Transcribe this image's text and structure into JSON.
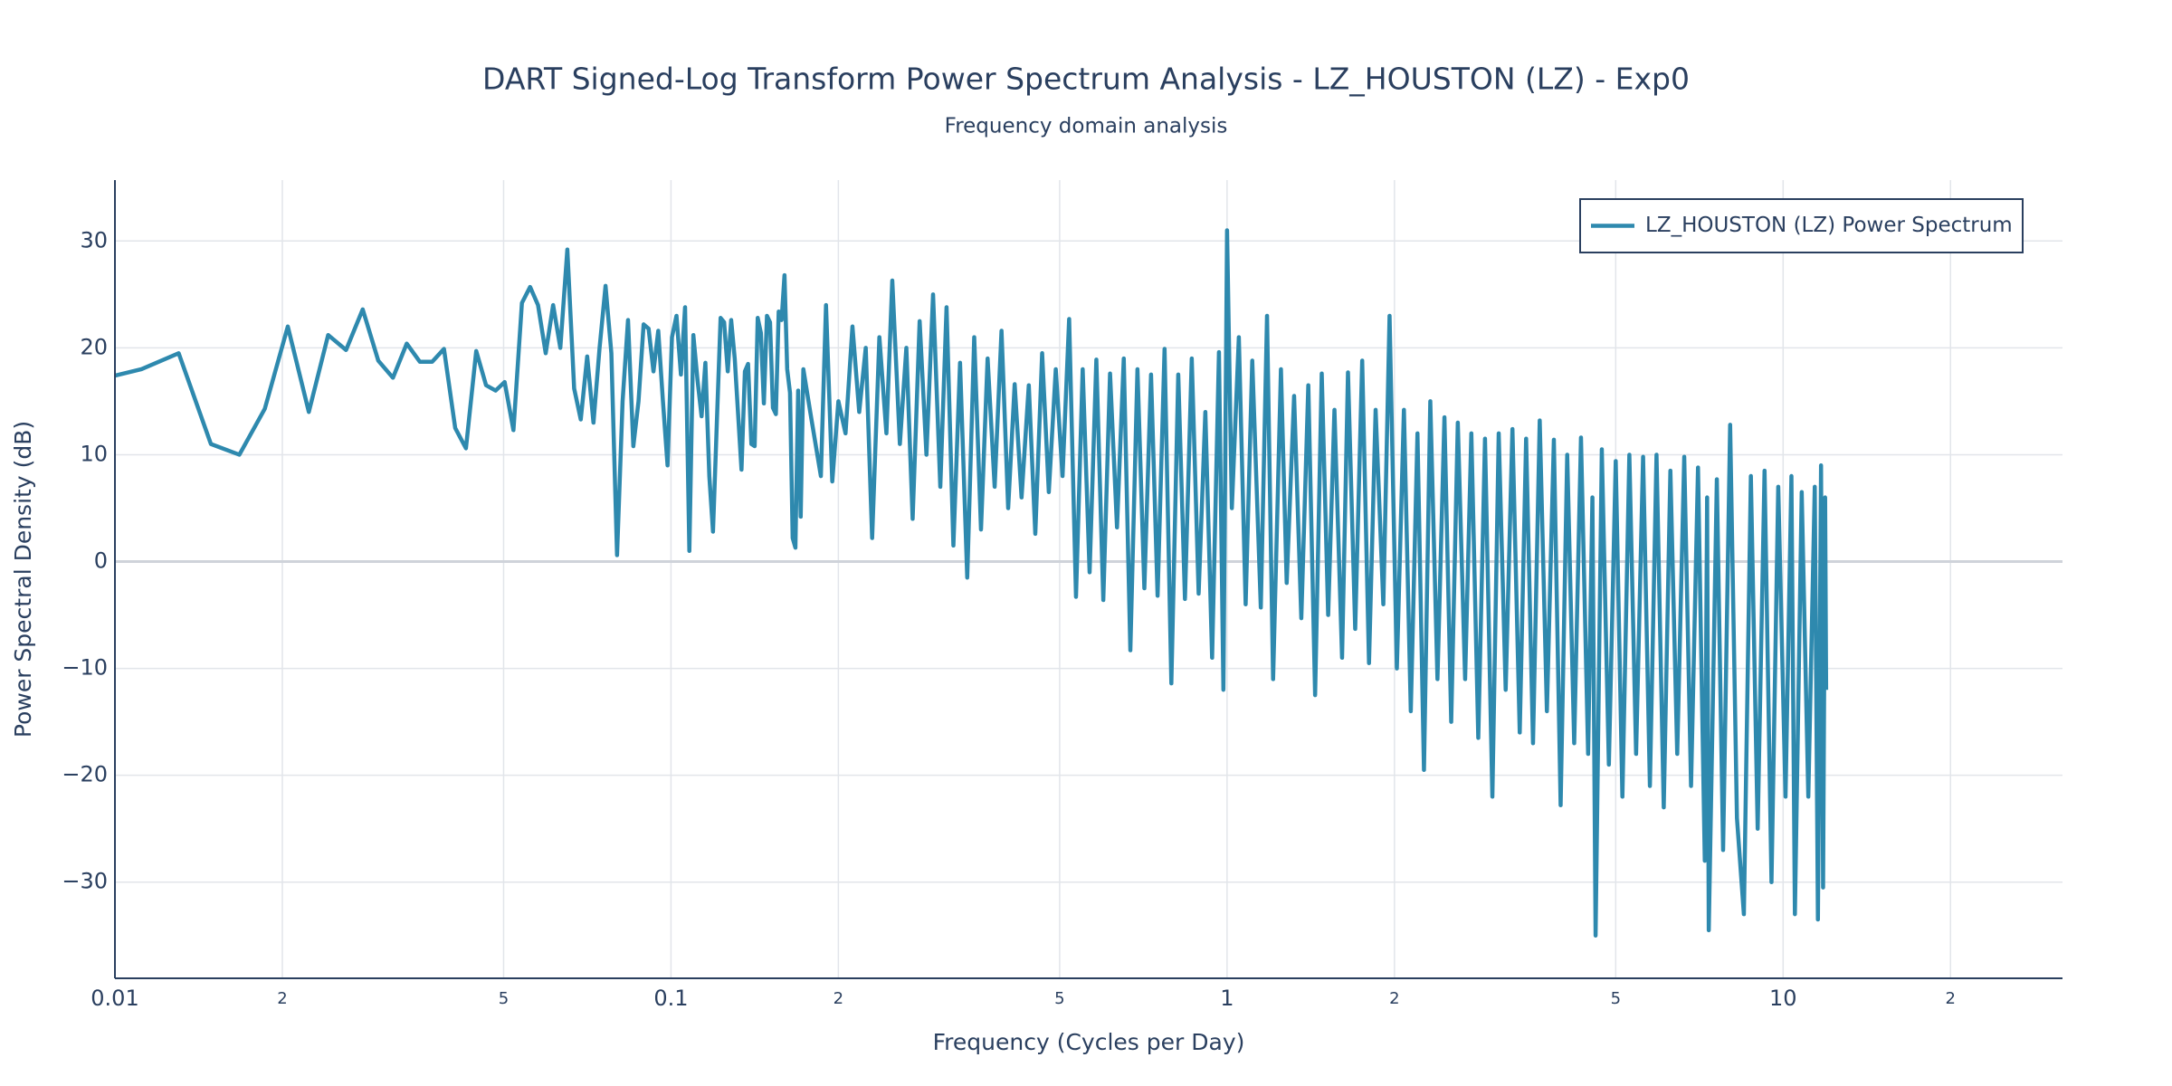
{
  "chart_data": {
    "type": "line",
    "title": "DART Signed-Log Transform Power Spectrum Analysis - LZ_HOUSTON (LZ) - Exp0",
    "subtitle": "Frequency domain analysis",
    "x_label": "Frequency (Cycles per Day)",
    "y_label": "Power Spectral Density (dB)",
    "x_scale": "log",
    "xlim": [
      0.01,
      31.8
    ],
    "ylim": [
      -39,
      35.7
    ],
    "xticks": [
      0.01,
      {
        "value": 0.02,
        "label": "2"
      },
      {
        "value": 0.05,
        "label": "5"
      },
      0.1,
      {
        "value": 0.2,
        "label": "2"
      },
      {
        "value": 0.5,
        "label": "5"
      },
      1,
      {
        "value": 2,
        "label": "2"
      },
      {
        "value": 5,
        "label": "5"
      },
      10,
      {
        "value": 20,
        "label": "2"
      }
    ],
    "yticks": [
      {
        "value": -30,
        "label": "−30"
      },
      {
        "value": -20,
        "label": "−20"
      },
      {
        "value": -10,
        "label": "−10"
      },
      0,
      10,
      20,
      30
    ],
    "grid": true,
    "legend": "top-right",
    "x": [
      0.0093,
      0.01116,
      0.01302,
      0.01488,
      0.01674,
      0.0186,
      0.02046,
      0.02232,
      0.02418,
      0.02604,
      0.0279,
      0.02976,
      0.03162,
      0.03348,
      0.03534,
      0.0372,
      0.03906,
      0.04092,
      0.04278,
      0.04464,
      0.0465,
      0.04836,
      0.05022,
      0.05208,
      0.05394,
      0.0558,
      0.05766,
      0.05952,
      0.06138,
      0.06324,
      0.0651,
      0.06696,
      0.06882,
      0.07068,
      0.07254,
      0.0744,
      0.07626,
      0.07812,
      0.07998,
      0.08184,
      0.0837,
      0.08556,
      0.08742,
      0.08928,
      0.09114,
      0.093,
      0.09486,
      0.09672,
      0.09858,
      0.1004,
      0.1023,
      0.1042,
      0.106,
      0.1079,
      0.1097,
      0.1116,
      0.1135,
      0.1153,
      0.1172,
      0.119,
      0.1209,
      0.1228,
      0.1246,
      0.1265,
      0.1283,
      0.1302,
      0.1339,
      0.1358,
      0.1376,
      0.1395,
      0.1414,
      0.1432,
      0.1451,
      0.1469,
      0.1488,
      0.1507,
      0.1525,
      0.1544,
      0.1562,
      0.1581,
      0.16,
      0.1618,
      0.1637,
      0.1655,
      0.1674,
      0.1693,
      0.1711,
      0.173,
      0.178,
      0.186,
      0.19,
      0.195,
      0.2,
      0.206,
      0.212,
      0.218,
      0.224,
      0.23,
      0.237,
      0.244,
      0.25,
      0.258,
      0.265,
      0.272,
      0.28,
      0.288,
      0.296,
      0.305,
      0.313,
      0.322,
      0.331,
      0.341,
      0.351,
      0.361,
      0.371,
      0.382,
      0.393,
      0.404,
      0.415,
      0.427,
      0.44,
      0.452,
      0.465,
      0.478,
      0.492,
      0.506,
      0.52,
      0.535,
      0.55,
      0.566,
      0.582,
      0.599,
      0.616,
      0.634,
      0.652,
      0.67,
      0.69,
      0.71,
      0.73,
      0.75,
      0.772,
      0.794,
      0.817,
      0.84,
      0.864,
      0.889,
      0.914,
      0.94,
      0.967,
      0.985,
      1.0,
      1.02,
      1.05,
      1.08,
      1.11,
      1.15,
      1.18,
      1.21,
      1.25,
      1.28,
      1.32,
      1.36,
      1.4,
      1.44,
      1.48,
      1.52,
      1.56,
      1.61,
      1.65,
      1.7,
      1.75,
      1.8,
      1.85,
      1.91,
      1.96,
      2.02,
      2.08,
      2.14,
      2.2,
      2.26,
      2.32,
      2.39,
      2.46,
      2.53,
      2.6,
      2.68,
      2.75,
      2.83,
      2.91,
      3.0,
      3.08,
      3.17,
      3.26,
      3.36,
      3.45,
      3.55,
      3.65,
      3.76,
      3.87,
      3.98,
      4.09,
      4.21,
      4.33,
      4.46,
      4.54,
      4.6,
      4.72,
      4.86,
      5.0,
      5.14,
      5.29,
      5.44,
      5.6,
      5.76,
      5.92,
      6.1,
      6.27,
      6.45,
      6.64,
      6.83,
      7.03,
      7.23,
      7.3,
      7.35,
      7.6,
      7.8,
      8.03,
      8.26,
      8.5,
      8.75,
      9.0,
      9.26,
      9.53,
      9.8,
      10.1,
      10.35,
      10.5,
      10.8,
      11.1,
      11.4,
      11.55,
      11.7,
      11.8,
      11.9,
      11.95
    ],
    "series": [
      {
        "name": "LZ_HOUSTON (LZ) Power Spectrum",
        "color": "#2e89ae",
        "values": [
          17.0,
          18.0,
          19.5,
          11.0,
          10.0,
          14.3,
          22.0,
          14.0,
          21.2,
          19.8,
          23.6,
          18.8,
          17.2,
          20.4,
          18.7,
          18.7,
          19.9,
          12.5,
          10.6,
          19.7,
          16.5,
          16.0,
          16.8,
          12.3,
          24.2,
          25.7,
          24.0,
          19.5,
          24.0,
          20.0,
          29.2,
          16.2,
          13.3,
          19.2,
          13.0,
          20.0,
          25.8,
          19.5,
          0.6,
          15,
          22.6,
          10.8,
          15,
          22.2,
          21.8,
          17.8,
          21.6,
          15,
          9,
          21,
          23,
          17.5,
          23.8,
          1.0,
          21.2,
          17,
          13.6,
          18.6,
          8,
          2.8,
          13,
          22.8,
          22.4,
          17.8,
          22.6,
          19,
          8.6,
          17.8,
          18.5,
          11,
          10.8,
          22.8,
          21.4,
          14.8,
          23,
          22.4,
          14.4,
          13.8,
          23.4,
          22.6,
          26.8,
          18,
          15.8,
          2.2,
          1.3,
          16,
          4.2,
          18,
          14,
          8,
          24,
          7.5,
          15,
          12,
          22,
          14,
          20,
          2.2,
          21,
          12,
          26.3,
          11,
          20,
          4,
          22.5,
          10,
          25,
          7,
          23.8,
          1.5,
          18.6,
          -1.5,
          21,
          3,
          19,
          7,
          21.6,
          5,
          16.6,
          6,
          16.5,
          2.6,
          19.5,
          6.5,
          18,
          8,
          22.7,
          -3.3,
          18,
          -1,
          18.9,
          -3.6,
          17.6,
          3.2,
          19,
          -8.3,
          18,
          -2.5,
          17.5,
          -3.2,
          19.9,
          -11.4,
          17.5,
          -3.5,
          19,
          -3,
          14,
          -9,
          19.6,
          -12,
          31,
          5,
          21,
          -4,
          18.8,
          -4.3,
          23,
          -11,
          18,
          -2,
          15.5,
          -5.3,
          16.5,
          -12.5,
          17.6,
          -5,
          14.2,
          -9,
          17.7,
          -6.3,
          18.8,
          -9.5,
          14.2,
          -4,
          23,
          -10,
          14.2,
          -14,
          12,
          -19.5,
          15,
          -11,
          13.5,
          -15,
          13,
          -11,
          12,
          -16.5,
          11.5,
          -22,
          12,
          -12,
          12.4,
          -16,
          11.5,
          -17,
          13.2,
          -14,
          11.4,
          -22.8,
          10,
          -17,
          11.6,
          -18,
          6,
          -35,
          10.5,
          -19,
          9.4,
          -22,
          10,
          -18,
          9.8,
          -21,
          10,
          -23,
          8.5,
          -18,
          9.8,
          -21,
          8.8,
          -28,
          6,
          -34.5,
          7.7,
          -27,
          12.8,
          -24,
          -33,
          8,
          -25,
          8.5,
          -30,
          7,
          -22,
          8,
          -33,
          6.5,
          -22,
          7,
          -33.5,
          9,
          -30.5,
          6,
          -12
        ]
      }
    ]
  }
}
